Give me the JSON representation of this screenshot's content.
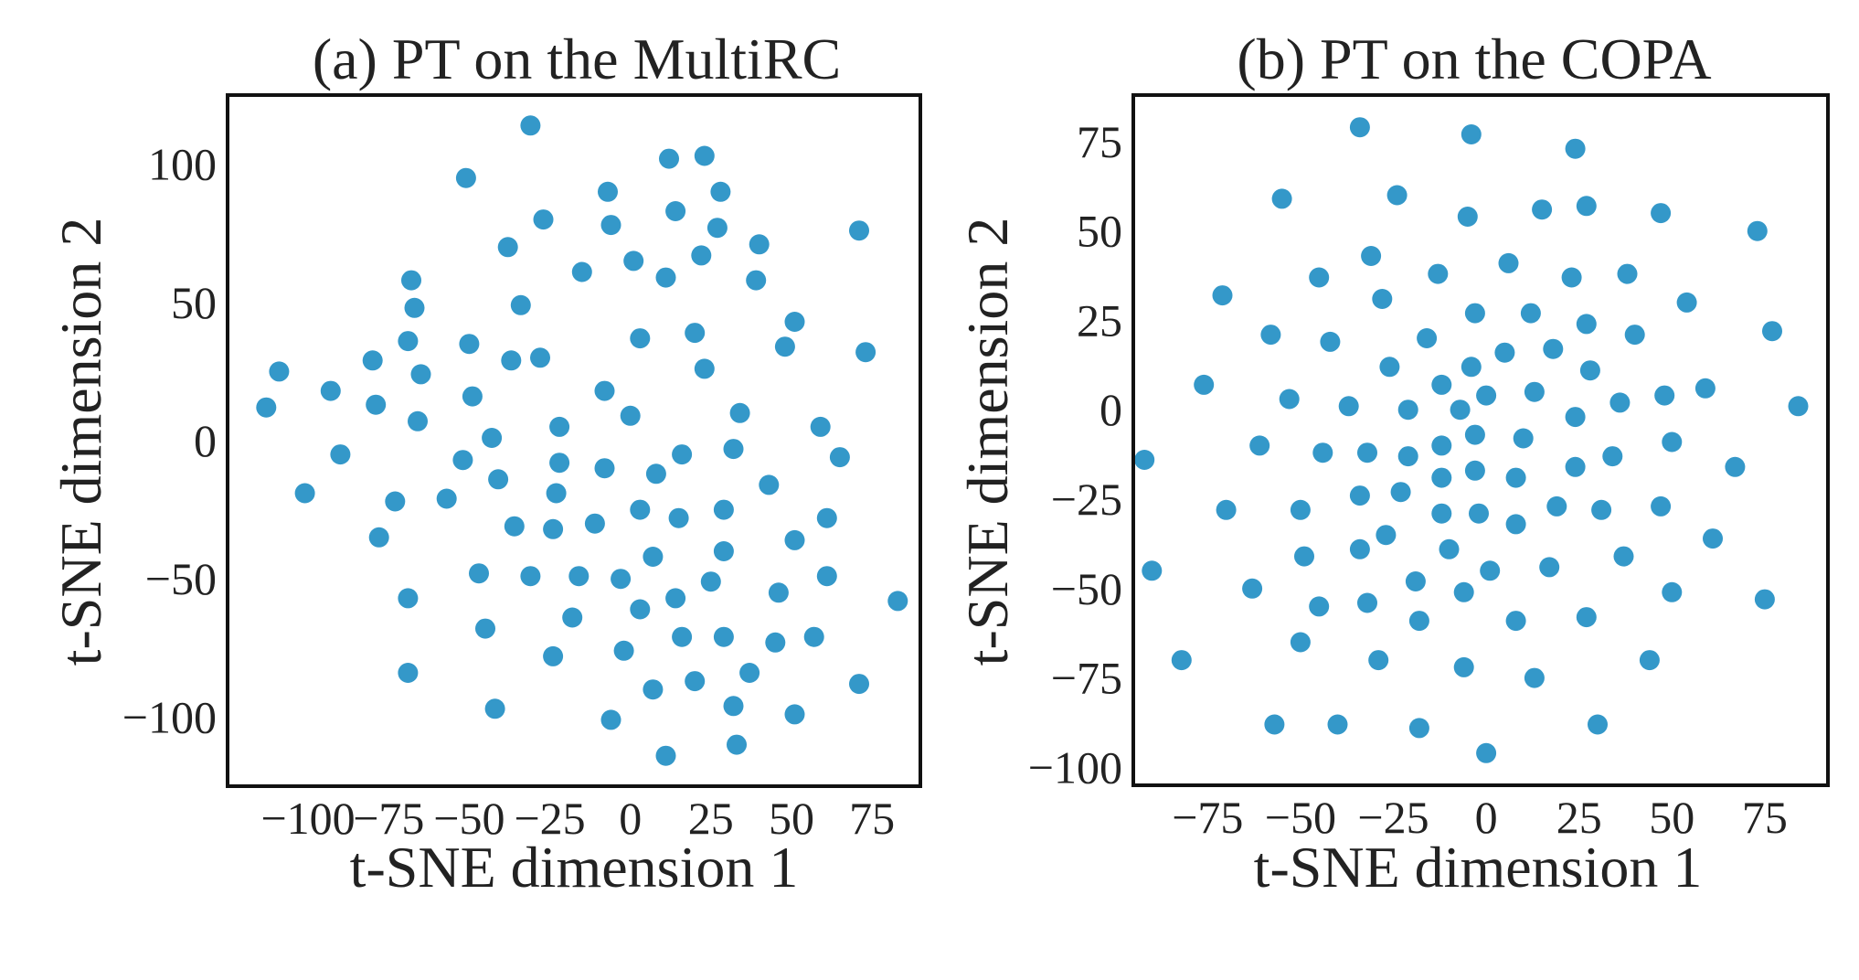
{
  "figure": {
    "background": "#ffffff"
  },
  "chart_data": [
    {
      "type": "scatter",
      "title": "(a) PT on the MultiRC",
      "xlabel": "t-SNE dimension 1",
      "ylabel": "t-SNE dimension 2",
      "xlim": [
        -125,
        90
      ],
      "ylim": [
        -125,
        125
      ],
      "xticks": [
        -100,
        -75,
        -50,
        -25,
        0,
        25,
        50,
        75
      ],
      "yticks": [
        -100,
        -50,
        0,
        50,
        100
      ],
      "xtick_labels": [
        "−100",
        "−75",
        "−50",
        "−25",
        "0",
        "25",
        "50",
        "75"
      ],
      "ytick_labels": [
        "−100",
        "−50",
        "0",
        "50",
        "100"
      ],
      "grid": false,
      "color": "#3498c9",
      "series": [
        {
          "points": [
            [
              -31,
              114
            ],
            [
              -51,
              95
            ],
            [
              12,
              102
            ],
            [
              23,
              103
            ],
            [
              28,
              90
            ],
            [
              -7,
              90
            ],
            [
              -27,
              80
            ],
            [
              -6,
              78
            ],
            [
              14,
              83
            ],
            [
              27,
              77
            ],
            [
              71,
              76
            ],
            [
              -38,
              70
            ],
            [
              40,
              71
            ],
            [
              -15,
              61
            ],
            [
              1,
              65
            ],
            [
              11,
              59
            ],
            [
              22,
              67
            ],
            [
              39,
              58
            ],
            [
              -68,
              58
            ],
            [
              -67,
              48
            ],
            [
              -34,
              49
            ],
            [
              51,
              43
            ],
            [
              -109,
              25
            ],
            [
              -80,
              29
            ],
            [
              -69,
              36
            ],
            [
              -65,
              24
            ],
            [
              -50,
              35
            ],
            [
              -37,
              29
            ],
            [
              -28,
              30
            ],
            [
              3,
              37
            ],
            [
              20,
              39
            ],
            [
              23,
              26
            ],
            [
              48,
              34
            ],
            [
              73,
              32
            ],
            [
              -93,
              18
            ],
            [
              -79,
              13
            ],
            [
              -113,
              12
            ],
            [
              -49,
              16
            ],
            [
              -8,
              18
            ],
            [
              -66,
              7
            ],
            [
              0,
              9
            ],
            [
              34,
              10
            ],
            [
              -43,
              1
            ],
            [
              -22,
              5
            ],
            [
              59,
              5
            ],
            [
              -90,
              -5
            ],
            [
              -52,
              -7
            ],
            [
              -22,
              -8
            ],
            [
              -8,
              -10
            ],
            [
              16,
              -5
            ],
            [
              32,
              -3
            ],
            [
              65,
              -6
            ],
            [
              -101,
              -19
            ],
            [
              -73,
              -22
            ],
            [
              -57,
              -21
            ],
            [
              -41,
              -14
            ],
            [
              -23,
              -19
            ],
            [
              8,
              -12
            ],
            [
              43,
              -16
            ],
            [
              -36,
              -31
            ],
            [
              -24,
              -32
            ],
            [
              -11,
              -30
            ],
            [
              3,
              -25
            ],
            [
              15,
              -28
            ],
            [
              29,
              -25
            ],
            [
              61,
              -28
            ],
            [
              -78,
              -35
            ],
            [
              51,
              -36
            ],
            [
              -47,
              -48
            ],
            [
              -31,
              -49
            ],
            [
              -16,
              -49
            ],
            [
              -3,
              -50
            ],
            [
              7,
              -42
            ],
            [
              29,
              -40
            ],
            [
              25,
              -51
            ],
            [
              61,
              -49
            ],
            [
              -69,
              -57
            ],
            [
              -18,
              -64
            ],
            [
              3,
              -61
            ],
            [
              14,
              -57
            ],
            [
              46,
              -55
            ],
            [
              -45,
              -68
            ],
            [
              -24,
              -78
            ],
            [
              -2,
              -76
            ],
            [
              16,
              -71
            ],
            [
              29,
              -71
            ],
            [
              45,
              -73
            ],
            [
              57,
              -71
            ],
            [
              83,
              -58
            ],
            [
              -69,
              -84
            ],
            [
              7,
              -90
            ],
            [
              20,
              -87
            ],
            [
              37,
              -84
            ],
            [
              71,
              -88
            ],
            [
              -42,
              -97
            ],
            [
              -6,
              -101
            ],
            [
              32,
              -96
            ],
            [
              51,
              -99
            ],
            [
              11,
              -114
            ],
            [
              33,
              -110
            ]
          ]
        }
      ]
    },
    {
      "type": "scatter",
      "title": "(b) PT on the COPA",
      "xlabel": "t-SNE dimension 1",
      "ylabel": "t-SNE dimension 2",
      "xlim": [
        -95,
        92
      ],
      "ylim": [
        -105,
        88
      ],
      "xticks": [
        -75,
        -50,
        -25,
        0,
        25,
        50,
        75
      ],
      "yticks": [
        -100,
        -75,
        -50,
        -25,
        0,
        25,
        50,
        75
      ],
      "xtick_labels": [
        "−75",
        "−50",
        "−25",
        "0",
        "25",
        "50",
        "75"
      ],
      "ytick_labels": [
        "−100",
        "−75",
        "−50",
        "−25",
        "0",
        "25",
        "50",
        "75"
      ],
      "grid": false,
      "color": "#3498c9",
      "series": [
        {
          "points": [
            [
              -34,
              79
            ],
            [
              -4,
              77
            ],
            [
              24,
              73
            ],
            [
              -55,
              59
            ],
            [
              -24,
              60
            ],
            [
              -5,
              54
            ],
            [
              15,
              56
            ],
            [
              27,
              57
            ],
            [
              47,
              55
            ],
            [
              73,
              50
            ],
            [
              -31,
              43
            ],
            [
              6,
              41
            ],
            [
              -45,
              37
            ],
            [
              -13,
              38
            ],
            [
              23,
              37
            ],
            [
              38,
              38
            ],
            [
              -71,
              32
            ],
            [
              -28,
              31
            ],
            [
              -3,
              27
            ],
            [
              12,
              27
            ],
            [
              27,
              24
            ],
            [
              54,
              30
            ],
            [
              77,
              22
            ],
            [
              -58,
              21
            ],
            [
              -42,
              19
            ],
            [
              -16,
              20
            ],
            [
              18,
              17
            ],
            [
              40,
              21
            ],
            [
              -76,
              7
            ],
            [
              -26,
              12
            ],
            [
              -4,
              12
            ],
            [
              5,
              16
            ],
            [
              28,
              11
            ],
            [
              -53,
              3
            ],
            [
              -37,
              1
            ],
            [
              -21,
              0
            ],
            [
              -7,
              0
            ],
            [
              -12,
              7
            ],
            [
              0,
              4
            ],
            [
              13,
              5
            ],
            [
              24,
              -2
            ],
            [
              36,
              2
            ],
            [
              48,
              4
            ],
            [
              59,
              6
            ],
            [
              84,
              1
            ],
            [
              -61,
              -10
            ],
            [
              -44,
              -12
            ],
            [
              -32,
              -12
            ],
            [
              -21,
              -13
            ],
            [
              -12,
              -10
            ],
            [
              -3,
              -7
            ],
            [
              10,
              -8
            ],
            [
              34,
              -13
            ],
            [
              50,
              -9
            ],
            [
              -92,
              -14
            ],
            [
              -70,
              -28
            ],
            [
              -34,
              -24
            ],
            [
              -23,
              -23
            ],
            [
              -12,
              -19
            ],
            [
              -3,
              -17
            ],
            [
              8,
              -19
            ],
            [
              24,
              -16
            ],
            [
              -50,
              -28
            ],
            [
              -12,
              -29
            ],
            [
              -2,
              -29
            ],
            [
              8,
              -32
            ],
            [
              19,
              -27
            ],
            [
              31,
              -28
            ],
            [
              47,
              -27
            ],
            [
              67,
              -16
            ],
            [
              -27,
              -35
            ],
            [
              -10,
              -39
            ],
            [
              -34,
              -39
            ],
            [
              -49,
              -41
            ],
            [
              -19,
              -48
            ],
            [
              -6,
              -51
            ],
            [
              1,
              -45
            ],
            [
              17,
              -44
            ],
            [
              37,
              -41
            ],
            [
              61,
              -36
            ],
            [
              -90,
              -45
            ],
            [
              -63,
              -50
            ],
            [
              -32,
              -54
            ],
            [
              -45,
              -55
            ],
            [
              -18,
              -59
            ],
            [
              8,
              -59
            ],
            [
              27,
              -58
            ],
            [
              50,
              -51
            ],
            [
              75,
              -53
            ],
            [
              -82,
              -70
            ],
            [
              -50,
              -65
            ],
            [
              -29,
              -70
            ],
            [
              -6,
              -72
            ],
            [
              13,
              -75
            ],
            [
              44,
              -70
            ],
            [
              -57,
              -88
            ],
            [
              -40,
              -88
            ],
            [
              -18,
              -89
            ],
            [
              30,
              -88
            ],
            [
              0,
              -96
            ]
          ]
        }
      ]
    }
  ]
}
